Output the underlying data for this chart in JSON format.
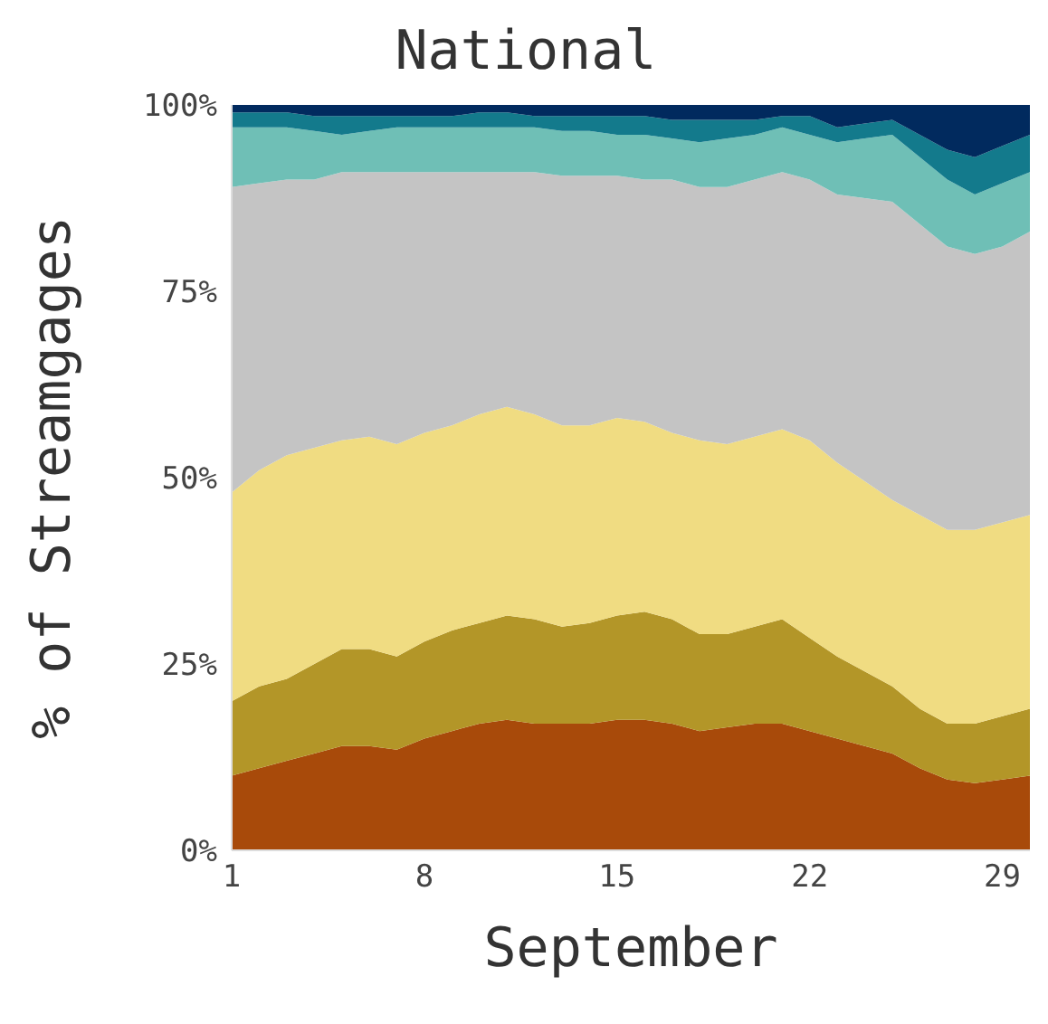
{
  "chart_data": {
    "type": "area",
    "stacked": true,
    "title": "National",
    "xlabel": "September",
    "ylabel": "% of Streamgages",
    "x": [
      1,
      2,
      3,
      4,
      5,
      6,
      7,
      8,
      9,
      10,
      11,
      12,
      13,
      14,
      15,
      16,
      17,
      18,
      19,
      20,
      21,
      22,
      23,
      24,
      25,
      26,
      27,
      28,
      29,
      30
    ],
    "xlim": [
      1,
      30
    ],
    "xticks": [
      1,
      8,
      15,
      22,
      29
    ],
    "ylim": [
      0,
      100
    ],
    "yticks": [
      {
        "value": 0,
        "label": "0%"
      },
      {
        "value": 25,
        "label": "25%"
      },
      {
        "value": 50,
        "label": "50%"
      },
      {
        "value": 75,
        "label": "75%"
      },
      {
        "value": 100,
        "label": "100%"
      }
    ],
    "grid": false,
    "legend": false,
    "series": [
      {
        "color": "#a84a0a",
        "values": [
          10,
          11,
          12,
          13,
          14,
          14,
          13.5,
          15,
          16,
          17,
          17.5,
          17,
          17,
          17,
          17.5,
          17.5,
          17,
          16,
          16.5,
          17,
          17,
          16,
          15,
          14,
          13,
          11,
          9.5,
          9,
          9.5,
          10
        ]
      },
      {
        "color": "#b39628",
        "values": [
          10,
          11,
          11,
          12,
          13,
          13,
          12.5,
          13,
          13.5,
          13.5,
          14,
          14,
          13,
          13.5,
          14,
          14.5,
          14,
          13,
          12.5,
          13,
          14,
          12.5,
          11,
          10,
          9,
          8,
          7.5,
          8,
          8.5,
          9
        ]
      },
      {
        "color": "#f0dc82",
        "values": [
          28,
          29,
          30,
          29,
          28,
          28.5,
          28.5,
          28,
          27.5,
          28,
          28,
          27.5,
          27,
          26.5,
          26.5,
          25.5,
          25,
          26,
          25.5,
          25.5,
          25.5,
          26.5,
          26,
          25.5,
          25,
          26,
          26,
          26,
          26,
          26
        ]
      },
      {
        "color": "#c4c4c4",
        "values": [
          41,
          38.5,
          37,
          36,
          36,
          35.5,
          36.5,
          35,
          34,
          32.5,
          31.5,
          32.5,
          33.5,
          33.5,
          32.5,
          32.5,
          34,
          34,
          34.5,
          34.5,
          34.5,
          35,
          36,
          38,
          40,
          39,
          38,
          37,
          37,
          38
        ]
      },
      {
        "color": "#6fbfb6",
        "values": [
          8,
          7.5,
          7,
          6.5,
          5,
          5.5,
          6,
          6,
          6,
          6,
          6,
          6,
          6,
          6,
          5.5,
          6,
          5.5,
          6,
          6.5,
          6,
          6,
          6,
          7,
          8,
          9,
          9,
          9,
          8,
          8.5,
          8
        ]
      },
      {
        "color": "#137a8c",
        "values": [
          2,
          2,
          2,
          2,
          2.5,
          2,
          1.5,
          1.5,
          1.5,
          2,
          2,
          1.5,
          2,
          2,
          2.5,
          2.5,
          2.5,
          3,
          2.5,
          2,
          1.5,
          2.5,
          2,
          2,
          2,
          3,
          4,
          5,
          5,
          5
        ]
      },
      {
        "color": "#012a5e",
        "values": [
          1,
          1,
          1,
          1.5,
          1.5,
          1.5,
          1.5,
          1.5,
          1.5,
          1,
          1,
          1.5,
          1.5,
          1.5,
          1.5,
          1.5,
          2,
          2,
          2,
          2,
          1.5,
          1.5,
          3,
          2.5,
          2,
          4,
          6,
          7,
          5.5,
          4
        ]
      }
    ]
  }
}
